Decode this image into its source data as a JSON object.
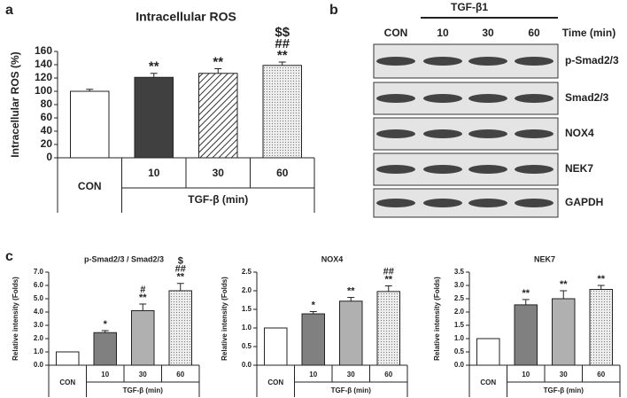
{
  "panel_labels": [
    "a",
    "b",
    "c"
  ],
  "blot": {
    "group_label": "TGF-β1",
    "lanes": [
      "CON",
      "10",
      "30",
      "60"
    ],
    "lane_axis": "Time (min)",
    "rows": [
      "p-Smad2/3",
      "Smad2/3",
      "NOX4",
      "NEK7",
      "GAPDH"
    ]
  },
  "chart_data": [
    {
      "type": "bar",
      "title": "Intracellular ROS",
      "ylabel": "Intracellular ROS (%)",
      "xlabel": "TGF-β (min)",
      "categories": [
        "CON",
        "10",
        "30",
        "60"
      ],
      "values": [
        100,
        121,
        127,
        139
      ],
      "errors": [
        3,
        6,
        7,
        5
      ],
      "fills": [
        "#ffffff",
        "#404040",
        "hatch",
        "dots"
      ],
      "annotations": [
        [],
        [
          "**"
        ],
        [
          "**"
        ],
        [
          "$$",
          "##",
          "**"
        ]
      ],
      "ylim": [
        0,
        160
      ],
      "yticks": [
        0,
        20,
        40,
        60,
        80,
        100,
        120,
        140,
        160
      ]
    },
    {
      "type": "bar",
      "title": "p-Smad2/3 / Smad2/3",
      "ylabel": "Relative intensity (Folds)",
      "xlabel": "TGF-β (min)",
      "categories": [
        "CON",
        "10",
        "30",
        "60"
      ],
      "values": [
        1.0,
        2.45,
        4.1,
        5.6
      ],
      "errors": [
        0,
        0.15,
        0.5,
        0.55
      ],
      "fills": [
        "#ffffff",
        "#808080",
        "#b0b0b0",
        "dots"
      ],
      "annotations": [
        [],
        [
          "*"
        ],
        [
          "#",
          "**"
        ],
        [
          "$",
          "##",
          "**"
        ]
      ],
      "ylim": [
        0,
        7
      ],
      "yticks": [
        {
          "value": 0,
          "label": "0.0"
        },
        {
          "value": 1,
          "label": "1.0"
        },
        {
          "value": 2,
          "label": "2.0"
        },
        {
          "value": 3,
          "label": "3.0"
        },
        {
          "value": 4,
          "label": "4.0"
        },
        {
          "value": 5,
          "label": "5.0"
        },
        {
          "value": 6,
          "label": "6.0"
        },
        {
          "value": 7,
          "label": "7.0"
        }
      ]
    },
    {
      "type": "bar",
      "title": "NOX4",
      "ylabel": "Relative intensity (Folds)",
      "xlabel": "TGF-β (min)",
      "categories": [
        "CON",
        "10",
        "30",
        "60"
      ],
      "values": [
        1.0,
        1.38,
        1.72,
        1.98
      ],
      "errors": [
        0,
        0.06,
        0.1,
        0.15
      ],
      "fills": [
        "#ffffff",
        "#808080",
        "#b0b0b0",
        "dots"
      ],
      "annotations": [
        [],
        [
          "*"
        ],
        [
          "**"
        ],
        [
          "##",
          "**"
        ]
      ],
      "ylim": [
        0,
        2.5
      ],
      "yticks": [
        {
          "value": 0,
          "label": "0.0"
        },
        0.5,
        {
          "value": 1,
          "label": "1.0"
        },
        1.5,
        {
          "value": 2,
          "label": "2.0"
        },
        2.5
      ]
    },
    {
      "type": "bar",
      "title": "NEK7",
      "ylabel": "Relative intensity (Folds)",
      "xlabel": "TGF-β (min)",
      "categories": [
        "CON",
        "10",
        "30",
        "60"
      ],
      "values": [
        1.0,
        2.27,
        2.5,
        2.85
      ],
      "errors": [
        0,
        0.2,
        0.3,
        0.15
      ],
      "fills": [
        "#ffffff",
        "#808080",
        "#b0b0b0",
        "dots"
      ],
      "annotations": [
        [],
        [
          "**"
        ],
        [
          "**"
        ],
        [
          "**"
        ]
      ],
      "ylim": [
        0,
        3.5
      ],
      "yticks": [
        {
          "value": 0,
          "label": "0.0"
        },
        0.5,
        {
          "value": 1,
          "label": "1.0"
        },
        1.5,
        {
          "value": 2,
          "label": "2.0"
        },
        2.5,
        {
          "value": 3,
          "label": "3.0"
        },
        3.5
      ]
    }
  ]
}
